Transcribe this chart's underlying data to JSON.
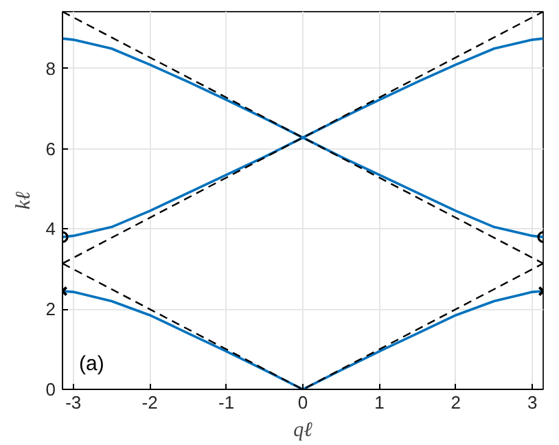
{
  "chart_data": {
    "type": "line",
    "xlabel": "qℓ",
    "ylabel": "kℓ",
    "xlim": [
      -3.1416,
      3.1416
    ],
    "ylim": [
      0,
      9.42
    ],
    "xticks": [
      -3,
      -2,
      -1,
      0,
      1,
      2,
      3
    ],
    "yticks": [
      0,
      2,
      4,
      6,
      8
    ],
    "grid": true,
    "annotations": [
      "(a)"
    ],
    "series": [
      {
        "color": "#0072bd",
        "line_style": "solid",
        "x": [
          -3.1416,
          -3,
          -2.5,
          -2,
          -1.5,
          -1,
          -0.5,
          0,
          0.5,
          1,
          1.5,
          2,
          2.5,
          3,
          3.1416
        ],
        "values": [
          2.45,
          2.43,
          2.2,
          1.85,
          1.4,
          0.95,
          0.48,
          0,
          0.48,
          0.95,
          1.4,
          1.85,
          2.2,
          2.43,
          2.45
        ]
      },
      {
        "color": "#0072bd",
        "line_style": "solid",
        "x": [
          -3.1416,
          -3,
          -2.5,
          -2,
          -1.5,
          -1,
          -0.5,
          0,
          0.5,
          1,
          1.5,
          2,
          2.5,
          3,
          3.1416
        ],
        "values": [
          3.8,
          3.83,
          4.05,
          4.45,
          4.9,
          5.35,
          5.8,
          6.28,
          5.8,
          5.35,
          4.9,
          4.45,
          4.05,
          3.83,
          3.8
        ]
      },
      {
        "color": "#0072bd",
        "line_style": "solid",
        "x": [
          -3.1416,
          -3,
          -2.5,
          -2,
          -1.5,
          -1,
          -0.5,
          0,
          0.5,
          1,
          1.5,
          2,
          2.5,
          3,
          3.1416
        ],
        "values": [
          8.75,
          8.72,
          8.5,
          8.1,
          7.67,
          7.22,
          6.76,
          6.28,
          6.76,
          7.22,
          7.67,
          8.1,
          8.5,
          8.72,
          8.75
        ]
      },
      {
        "color": "#000000",
        "line_style": "dashed",
        "x": [
          -3.1416,
          3.1416
        ],
        "values": [
          9.42,
          3.14
        ]
      },
      {
        "color": "#000000",
        "line_style": "dashed",
        "x": [
          -3.1416,
          3.1416
        ],
        "values": [
          3.14,
          9.42
        ]
      },
      {
        "color": "#000000",
        "line_style": "dashed",
        "x": [
          -3.1416,
          0,
          3.1416
        ],
        "values": [
          3.14,
          0,
          3.14
        ]
      },
      {
        "type": "scatter",
        "color": "#000000",
        "marker": "cross",
        "x": [
          -3.1416,
          3.1416
        ],
        "values": [
          2.45,
          2.45
        ]
      },
      {
        "type": "scatter",
        "color": "#000000",
        "marker": "circle",
        "x": [
          -3.1416,
          3.1416
        ],
        "values": [
          3.8,
          3.8
        ]
      }
    ]
  }
}
